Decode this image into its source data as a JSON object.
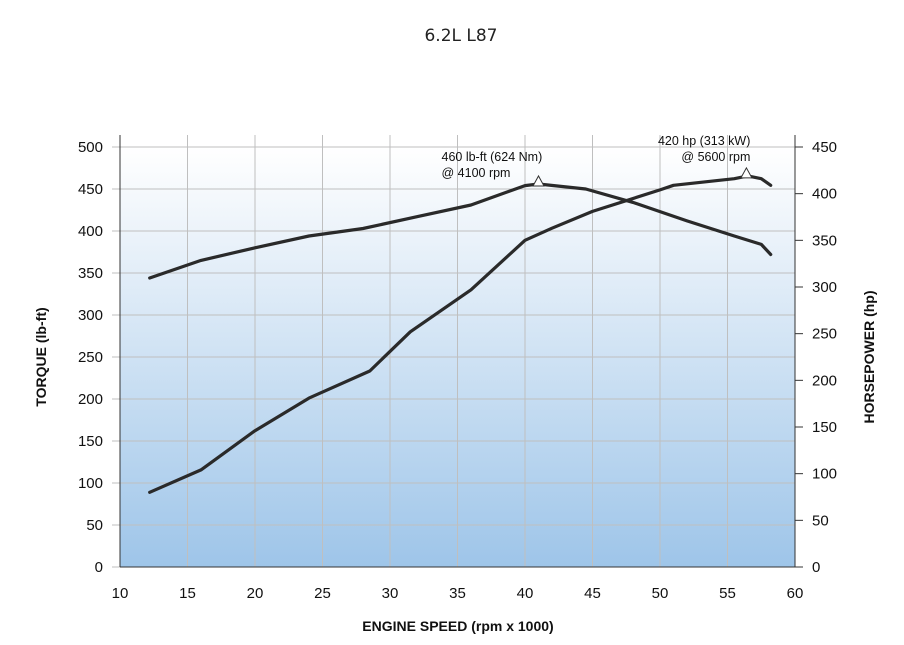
{
  "chart_data": {
    "type": "line",
    "title": "6.2L L87",
    "xlabel": "ENGINE SPEED (rpm x 1000)",
    "ylabel": "TORQUE (lb-ft)",
    "y2label": "HORSEPOWER (hp)",
    "xlim": [
      10,
      60
    ],
    "ylim": [
      0,
      500
    ],
    "y2lim": [
      0,
      450
    ],
    "xticks": [
      10,
      15,
      20,
      25,
      30,
      35,
      40,
      45,
      50,
      55,
      60
    ],
    "yticks": [
      0,
      50,
      100,
      150,
      200,
      250,
      300,
      350,
      400,
      450,
      500
    ],
    "y2ticks": [
      0,
      50,
      100,
      150,
      200,
      250,
      300,
      350,
      400,
      450
    ],
    "grid": true,
    "colors": {
      "line": "#2a2a2a",
      "grid": "#bfbfbf",
      "fill_top": "#ffffff",
      "fill_bottom": "#9ec5e9",
      "marker_fill": "#ffffff",
      "axis": "#333333"
    },
    "series": [
      {
        "name": "Torque",
        "axis": "left",
        "x": [
          12.2,
          16,
          20,
          24,
          28,
          32,
          36,
          40,
          41,
          44.5,
          48,
          52,
          55.5,
          57.5,
          58.2
        ],
        "y": [
          344,
          365,
          380,
          394,
          403,
          417,
          431,
          454,
          456,
          450,
          434,
          412,
          394,
          384,
          372
        ]
      },
      {
        "name": "Horsepower",
        "axis": "right",
        "x": [
          12.2,
          16,
          20,
          24,
          28.5,
          31.5,
          36,
          40,
          42,
          45,
          50,
          51,
          55.5,
          56.5,
          57.5,
          58.2
        ],
        "y": [
          80,
          104,
          146,
          181,
          210,
          252,
          297,
          350,
          363,
          381,
          404,
          409,
          416,
          419,
          416,
          409
        ]
      }
    ],
    "annotations": [
      {
        "text_lines": [
          "460 lb-ft (624 Nm)",
          "@ 4100 rpm"
        ],
        "x": 41,
        "y": 456,
        "axis": "left"
      },
      {
        "text_lines": [
          "420 hp (313 kW)",
          "@ 5600 rpm"
        ],
        "x": 56.4,
        "y": 419,
        "axis": "right"
      }
    ]
  }
}
